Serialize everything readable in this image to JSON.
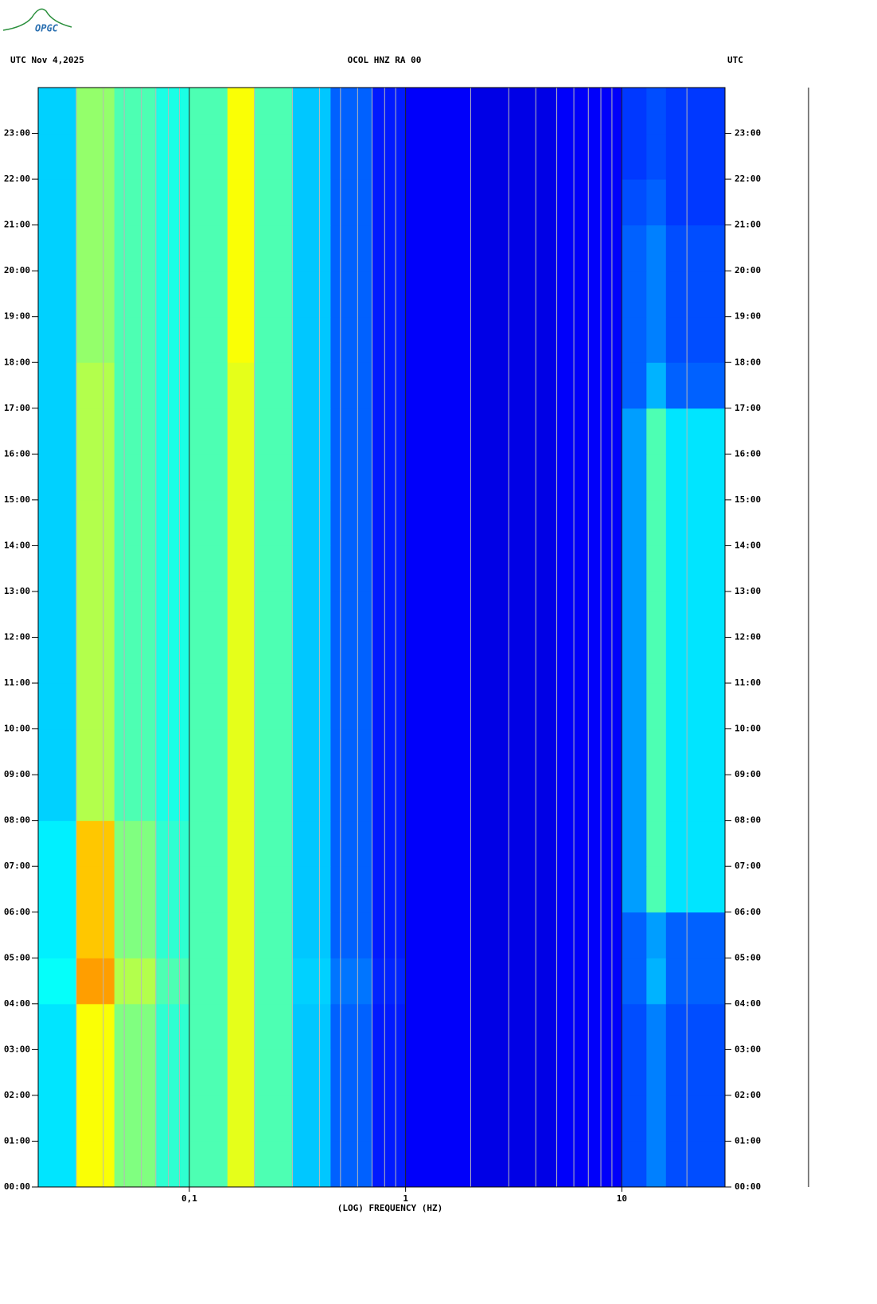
{
  "logo": "OPGC",
  "chart_data": {
    "type": "heatmap",
    "header_left": "UTC  Nov 4,2025",
    "title": "OCOL HNZ RA 00",
    "header_right": "UTC",
    "xlabel": "(LOG) FREQUENCY (HZ)",
    "xscale": "log",
    "xlim": [
      0.02,
      30
    ],
    "xticks": [
      {
        "value": 0.1,
        "label": "0,1"
      },
      1,
      10
    ],
    "xminorticks": [
      0.03,
      0.04,
      0.05,
      0.06,
      0.07,
      0.08,
      0.09,
      0.2,
      0.3,
      0.4,
      0.5,
      0.6,
      0.7,
      0.8,
      0.9,
      2,
      3,
      4,
      5,
      6,
      7,
      8,
      9,
      20
    ],
    "ylim": [
      0,
      24
    ],
    "yticks": [
      {
        "value": 0,
        "label": "00:00"
      },
      {
        "value": 1,
        "label": "01:00"
      },
      {
        "value": 2,
        "label": "02:00"
      },
      {
        "value": 3,
        "label": "03:00"
      },
      {
        "value": 4,
        "label": "04:00"
      },
      {
        "value": 5,
        "label": "05:00"
      },
      {
        "value": 6,
        "label": "06:00"
      },
      {
        "value": 7,
        "label": "07:00"
      },
      {
        "value": 8,
        "label": "08:00"
      },
      {
        "value": 9,
        "label": "09:00"
      },
      {
        "value": 10,
        "label": "10:00"
      },
      {
        "value": 11,
        "label": "11:00"
      },
      {
        "value": 12,
        "label": "12:00"
      },
      {
        "value": 13,
        "label": "13:00"
      },
      {
        "value": 14,
        "label": "14:00"
      },
      {
        "value": 15,
        "label": "15:00"
      },
      {
        "value": 16,
        "label": "16:00"
      },
      {
        "value": 17,
        "label": "17:00"
      },
      {
        "value": 18,
        "label": "18:00"
      },
      {
        "value": 19,
        "label": "19:00"
      },
      {
        "value": 20,
        "label": "20:00"
      },
      {
        "value": 21,
        "label": "21:00"
      },
      {
        "value": 22,
        "label": "22:00"
      },
      {
        "value": 23,
        "label": "23:00"
      }
    ],
    "colormap": "jet",
    "x_edges": [
      0.02,
      0.03,
      0.045,
      0.07,
      0.1,
      0.15,
      0.2,
      0.3,
      0.45,
      0.7,
      1,
      2,
      5,
      10,
      13,
      16,
      30
    ],
    "y_edges": [
      0,
      1,
      2,
      3,
      4,
      5,
      6,
      7,
      8,
      9,
      10,
      11,
      12,
      13,
      14,
      15,
      16,
      17,
      18,
      19,
      20,
      21,
      22,
      23,
      24
    ],
    "z": [
      [
        0.35,
        0.62,
        0.5,
        0.42,
        0.45,
        0.6,
        0.45,
        0.32,
        0.22,
        0.15,
        0.12,
        0.1,
        0.12,
        0.2,
        0.25,
        0.2
      ],
      [
        0.35,
        0.62,
        0.5,
        0.42,
        0.45,
        0.6,
        0.45,
        0.32,
        0.22,
        0.15,
        0.12,
        0.1,
        0.12,
        0.2,
        0.25,
        0.2
      ],
      [
        0.35,
        0.62,
        0.5,
        0.42,
        0.45,
        0.6,
        0.45,
        0.32,
        0.22,
        0.15,
        0.12,
        0.1,
        0.12,
        0.2,
        0.25,
        0.2
      ],
      [
        0.35,
        0.62,
        0.5,
        0.42,
        0.45,
        0.6,
        0.45,
        0.32,
        0.22,
        0.15,
        0.12,
        0.1,
        0.12,
        0.2,
        0.25,
        0.2
      ],
      [
        0.38,
        0.72,
        0.55,
        0.45,
        0.45,
        0.6,
        0.45,
        0.33,
        0.24,
        0.16,
        0.12,
        0.1,
        0.12,
        0.22,
        0.3,
        0.22
      ],
      [
        0.36,
        0.68,
        0.5,
        0.42,
        0.45,
        0.6,
        0.45,
        0.32,
        0.22,
        0.15,
        0.12,
        0.1,
        0.12,
        0.22,
        0.28,
        0.22
      ],
      [
        0.36,
        0.68,
        0.5,
        0.42,
        0.45,
        0.6,
        0.45,
        0.32,
        0.22,
        0.15,
        0.12,
        0.1,
        0.12,
        0.28,
        0.45,
        0.35
      ],
      [
        0.36,
        0.68,
        0.5,
        0.42,
        0.45,
        0.6,
        0.45,
        0.32,
        0.22,
        0.15,
        0.12,
        0.1,
        0.12,
        0.28,
        0.45,
        0.35
      ],
      [
        0.33,
        0.55,
        0.45,
        0.4,
        0.45,
        0.6,
        0.45,
        0.32,
        0.22,
        0.15,
        0.12,
        0.1,
        0.12,
        0.28,
        0.45,
        0.35
      ],
      [
        0.33,
        0.55,
        0.45,
        0.4,
        0.45,
        0.6,
        0.45,
        0.32,
        0.22,
        0.15,
        0.12,
        0.1,
        0.12,
        0.28,
        0.45,
        0.35
      ],
      [
        0.33,
        0.55,
        0.45,
        0.4,
        0.45,
        0.6,
        0.45,
        0.32,
        0.22,
        0.15,
        0.12,
        0.1,
        0.12,
        0.28,
        0.45,
        0.35
      ],
      [
        0.33,
        0.55,
        0.45,
        0.4,
        0.45,
        0.6,
        0.45,
        0.32,
        0.22,
        0.15,
        0.12,
        0.1,
        0.12,
        0.28,
        0.45,
        0.35
      ],
      [
        0.33,
        0.55,
        0.45,
        0.4,
        0.45,
        0.6,
        0.45,
        0.32,
        0.22,
        0.15,
        0.12,
        0.1,
        0.12,
        0.28,
        0.45,
        0.35
      ],
      [
        0.33,
        0.55,
        0.45,
        0.4,
        0.45,
        0.6,
        0.45,
        0.32,
        0.22,
        0.15,
        0.12,
        0.1,
        0.12,
        0.28,
        0.45,
        0.35
      ],
      [
        0.33,
        0.55,
        0.45,
        0.4,
        0.45,
        0.6,
        0.45,
        0.32,
        0.22,
        0.15,
        0.12,
        0.1,
        0.12,
        0.28,
        0.45,
        0.35
      ],
      [
        0.33,
        0.55,
        0.45,
        0.4,
        0.45,
        0.6,
        0.45,
        0.32,
        0.22,
        0.15,
        0.12,
        0.1,
        0.12,
        0.28,
        0.45,
        0.35
      ],
      [
        0.33,
        0.55,
        0.45,
        0.4,
        0.45,
        0.6,
        0.45,
        0.32,
        0.22,
        0.15,
        0.12,
        0.1,
        0.12,
        0.28,
        0.45,
        0.35
      ],
      [
        0.33,
        0.55,
        0.45,
        0.4,
        0.45,
        0.6,
        0.45,
        0.32,
        0.22,
        0.15,
        0.12,
        0.1,
        0.12,
        0.22,
        0.3,
        0.22
      ],
      [
        0.33,
        0.52,
        0.45,
        0.4,
        0.45,
        0.62,
        0.45,
        0.32,
        0.22,
        0.15,
        0.12,
        0.1,
        0.12,
        0.22,
        0.25,
        0.2
      ],
      [
        0.33,
        0.52,
        0.45,
        0.4,
        0.45,
        0.62,
        0.45,
        0.32,
        0.22,
        0.15,
        0.12,
        0.1,
        0.12,
        0.22,
        0.25,
        0.2
      ],
      [
        0.33,
        0.52,
        0.45,
        0.4,
        0.45,
        0.62,
        0.45,
        0.32,
        0.22,
        0.15,
        0.12,
        0.1,
        0.12,
        0.22,
        0.25,
        0.2
      ],
      [
        0.33,
        0.52,
        0.45,
        0.4,
        0.45,
        0.62,
        0.45,
        0.32,
        0.22,
        0.15,
        0.12,
        0.1,
        0.12,
        0.2,
        0.22,
        0.18
      ],
      [
        0.33,
        0.52,
        0.45,
        0.4,
        0.45,
        0.62,
        0.45,
        0.32,
        0.22,
        0.15,
        0.12,
        0.1,
        0.12,
        0.18,
        0.2,
        0.18
      ],
      [
        0.33,
        0.52,
        0.45,
        0.4,
        0.45,
        0.62,
        0.45,
        0.32,
        0.22,
        0.15,
        0.12,
        0.1,
        0.12,
        0.18,
        0.2,
        0.18
      ]
    ]
  }
}
